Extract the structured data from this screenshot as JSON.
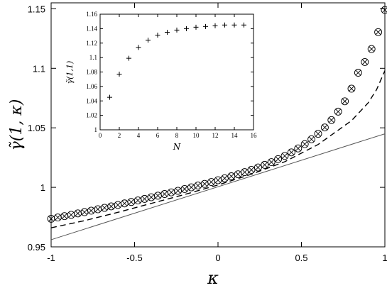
{
  "chart_data": [
    {
      "type": "scatter",
      "title": "",
      "xlabel": "κ",
      "ylabel": "γ̃(1, κ)",
      "xlim": [
        -1,
        1
      ],
      "ylim": [
        0.95,
        1.155
      ],
      "x_ticks": [
        -1,
        -0.5,
        0,
        0.5,
        1
      ],
      "x_tick_labels": [
        "-1",
        "-0.5",
        "0",
        "0.5",
        "1"
      ],
      "y_ticks": [
        0.95,
        1,
        1.05,
        1.1,
        1.15
      ],
      "y_tick_labels": [
        "0.95",
        "1",
        "1.05",
        "1.1",
        "1.15"
      ],
      "grid": false,
      "legend": "none",
      "series": [
        {
          "marker": "circle-with-x",
          "x": [
            -1,
            -0.96,
            -0.92,
            -0.88,
            -0.84,
            -0.8,
            -0.76,
            -0.72,
            -0.68,
            -0.64,
            -0.6,
            -0.56,
            -0.52,
            -0.48,
            -0.44,
            -0.4,
            -0.36,
            -0.32,
            -0.28,
            -0.24,
            -0.2,
            -0.16,
            -0.12,
            -0.08,
            -0.04,
            0,
            0.04,
            0.08,
            0.12,
            0.16,
            0.2,
            0.24,
            0.28,
            0.32,
            0.36,
            0.4,
            0.44,
            0.48,
            0.52,
            0.56,
            0.6,
            0.64,
            0.68,
            0.72,
            0.76,
            0.8,
            0.84,
            0.88,
            0.92,
            0.96,
            1
          ],
          "y": [
            0.9736,
            0.9747,
            0.9758,
            0.9769,
            0.9781,
            0.9792,
            0.9804,
            0.9816,
            0.9828,
            0.984,
            0.9852,
            0.9865,
            0.9877,
            0.989,
            0.9903,
            0.9917,
            0.993,
            0.9944,
            0.9958,
            0.9971,
            0.9986,
            1,
            1.0015,
            1.0029,
            1.0045,
            1.006,
            1.0076,
            1.0093,
            1.011,
            1.0128,
            1.0147,
            1.0167,
            1.0189,
            1.0212,
            1.0237,
            1.0264,
            1.0294,
            1.0327,
            1.0363,
            1.0404,
            1.045,
            1.0503,
            1.0565,
            1.0636,
            1.0723,
            1.0829,
            1.0963,
            1.1053,
            1.1162,
            1.1304,
            1.149
          ]
        },
        {
          "style": "dashed-line",
          "x": [
            -1,
            -0.8,
            -0.6,
            -0.4,
            -0.2,
            0,
            0.2,
            0.4,
            0.6,
            0.7,
            0.8,
            0.9,
            0.95,
            1
          ],
          "y": [
            0.966,
            0.972,
            0.979,
            0.9865,
            0.994,
            1.002,
            1.011,
            1.0215,
            1.036,
            1.046,
            1.056,
            1.071,
            1.082,
            1.098
          ]
        },
        {
          "style": "solid-line",
          "x": [
            -1,
            1
          ],
          "y": [
            0.956,
            1.045
          ]
        }
      ]
    },
    {
      "type": "scatter",
      "inset": true,
      "title": "",
      "xlabel": "N",
      "ylabel": "γ̃(1,1)",
      "xlim": [
        0,
        16
      ],
      "ylim": [
        1,
        1.16
      ],
      "x_ticks": [
        0,
        2,
        4,
        6,
        8,
        10,
        12,
        14,
        16
      ],
      "x_tick_labels": [
        "0",
        "2",
        "4",
        "6",
        "8",
        "10",
        "12",
        "14",
        "16"
      ],
      "y_ticks": [
        1,
        1.02,
        1.04,
        1.06,
        1.08,
        1.1,
        1.12,
        1.14,
        1.16
      ],
      "y_tick_labels": [
        "1",
        "1.02",
        "1.04",
        "1.06",
        "1.08",
        "1.1",
        "1.12",
        "1.14",
        "1.16"
      ],
      "grid": false,
      "legend": "none",
      "series": [
        {
          "marker": "plus",
          "x": [
            1,
            2,
            3,
            4,
            5,
            6,
            7,
            8,
            9,
            10,
            11,
            12,
            13,
            14,
            15
          ],
          "y": [
            1.045,
            1.077,
            1.099,
            1.114,
            1.124,
            1.131,
            1.135,
            1.138,
            1.14,
            1.142,
            1.143,
            1.144,
            1.145,
            1.145,
            1.145
          ]
        }
      ]
    }
  ]
}
